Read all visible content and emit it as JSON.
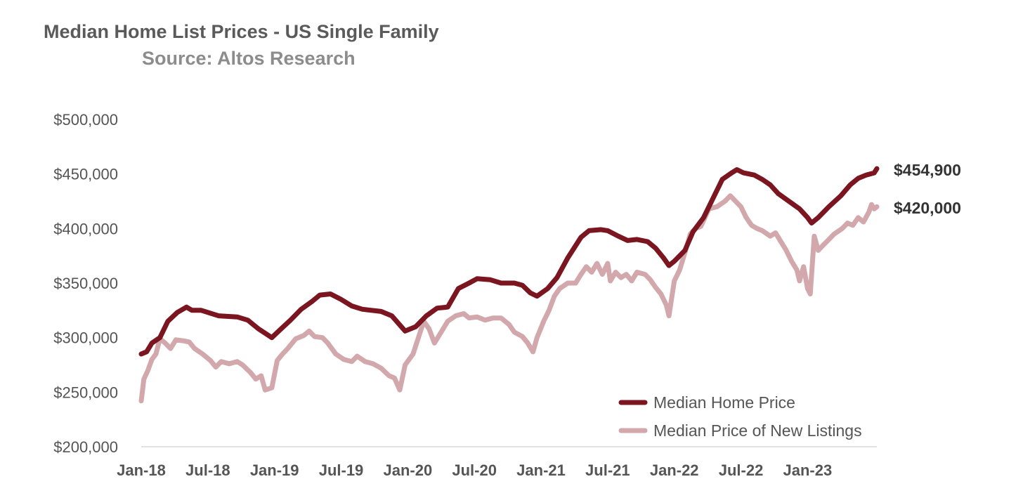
{
  "chart_data": {
    "type": "line",
    "title": "Median Home List Prices - US Single Family",
    "subtitle": "Source: Altos Research",
    "xlabel": "",
    "ylabel": "",
    "ylim": [
      200000,
      500000
    ],
    "y_ticks": [
      500000,
      450000,
      400000,
      350000,
      300000,
      250000,
      200000
    ],
    "y_tick_labels": [
      "$500,000",
      "$450,000",
      "$400,000",
      "$350,000",
      "$300,000",
      "$250,000",
      "$200,000"
    ],
    "x_tick_labels": [
      "Jan-18",
      "Jul-18",
      "Jan-19",
      "Jul-19",
      "Jan-20",
      "Jul-20",
      "Jan-21",
      "Jul-21",
      "Jan-22",
      "Jul-22",
      "Jan-23"
    ],
    "x_ticks": [
      2018.0,
      2018.5,
      2019.0,
      2019.5,
      2020.0,
      2020.5,
      2021.0,
      2021.5,
      2022.0,
      2022.5,
      2023.0
    ],
    "xlim": [
      2018.0,
      2023.52
    ],
    "grid": false,
    "legend_position": "bottom-right",
    "series": [
      {
        "name": "Median Home Price",
        "color": "#7b1520",
        "end_label": "$454,900",
        "points": [
          [
            2018.0,
            285000
          ],
          [
            2018.04,
            287000
          ],
          [
            2018.08,
            295000
          ],
          [
            2018.14,
            300000
          ],
          [
            2018.2,
            315000
          ],
          [
            2018.27,
            323000
          ],
          [
            2018.34,
            328000
          ],
          [
            2018.38,
            325000
          ],
          [
            2018.45,
            325000
          ],
          [
            2018.58,
            320000
          ],
          [
            2018.72,
            319000
          ],
          [
            2018.8,
            316000
          ],
          [
            2018.88,
            308000
          ],
          [
            2018.98,
            300000
          ],
          [
            2019.04,
            307000
          ],
          [
            2019.12,
            316000
          ],
          [
            2019.2,
            326000
          ],
          [
            2019.28,
            333000
          ],
          [
            2019.34,
            339000
          ],
          [
            2019.42,
            340000
          ],
          [
            2019.5,
            335000
          ],
          [
            2019.58,
            329000
          ],
          [
            2019.66,
            326000
          ],
          [
            2019.8,
            324000
          ],
          [
            2019.88,
            320000
          ],
          [
            2019.98,
            306000
          ],
          [
            2020.06,
            310000
          ],
          [
            2020.14,
            320000
          ],
          [
            2020.22,
            327000
          ],
          [
            2020.3,
            328000
          ],
          [
            2020.38,
            345000
          ],
          [
            2020.46,
            350000
          ],
          [
            2020.52,
            354000
          ],
          [
            2020.62,
            353000
          ],
          [
            2020.7,
            350000
          ],
          [
            2020.8,
            350000
          ],
          [
            2020.86,
            348000
          ],
          [
            2020.92,
            341000
          ],
          [
            2020.97,
            338000
          ],
          [
            2021.05,
            345000
          ],
          [
            2021.12,
            355000
          ],
          [
            2021.2,
            373000
          ],
          [
            2021.3,
            392000
          ],
          [
            2021.36,
            398000
          ],
          [
            2021.45,
            399000
          ],
          [
            2021.5,
            398000
          ],
          [
            2021.58,
            393000
          ],
          [
            2021.65,
            389000
          ],
          [
            2021.72,
            390000
          ],
          [
            2021.8,
            388000
          ],
          [
            2021.86,
            382000
          ],
          [
            2021.92,
            373000
          ],
          [
            2021.96,
            366000
          ],
          [
            2022.0,
            370000
          ],
          [
            2022.08,
            380000
          ],
          [
            2022.14,
            397000
          ],
          [
            2022.22,
            410000
          ],
          [
            2022.3,
            430000
          ],
          [
            2022.36,
            445000
          ],
          [
            2022.43,
            451000
          ],
          [
            2022.47,
            454000
          ],
          [
            2022.52,
            451000
          ],
          [
            2022.6,
            449000
          ],
          [
            2022.66,
            445000
          ],
          [
            2022.72,
            440000
          ],
          [
            2022.78,
            432000
          ],
          [
            2022.86,
            425000
          ],
          [
            2022.94,
            418000
          ],
          [
            2023.0,
            410000
          ],
          [
            2023.03,
            405000
          ],
          [
            2023.08,
            410000
          ],
          [
            2023.16,
            420000
          ],
          [
            2023.25,
            430000
          ],
          [
            2023.32,
            440000
          ],
          [
            2023.38,
            446000
          ],
          [
            2023.44,
            449000
          ],
          [
            2023.5,
            451000
          ],
          [
            2023.52,
            454900
          ]
        ]
      },
      {
        "name": "Median Price of New Listings",
        "color": "#d2a8ad",
        "end_label": "$420,000",
        "points": [
          [
            2018.0,
            242000
          ],
          [
            2018.02,
            262000
          ],
          [
            2018.05,
            270000
          ],
          [
            2018.08,
            280000
          ],
          [
            2018.11,
            285000
          ],
          [
            2018.14,
            299000
          ],
          [
            2018.18,
            295000
          ],
          [
            2018.22,
            290000
          ],
          [
            2018.26,
            298000
          ],
          [
            2018.32,
            297000
          ],
          [
            2018.36,
            296000
          ],
          [
            2018.4,
            290000
          ],
          [
            2018.46,
            285000
          ],
          [
            2018.52,
            279000
          ],
          [
            2018.56,
            273000
          ],
          [
            2018.6,
            278000
          ],
          [
            2018.66,
            276000
          ],
          [
            2018.72,
            278000
          ],
          [
            2018.76,
            275000
          ],
          [
            2018.82,
            268000
          ],
          [
            2018.86,
            262000
          ],
          [
            2018.9,
            265000
          ],
          [
            2018.93,
            252000
          ],
          [
            2018.98,
            254000
          ],
          [
            2019.02,
            279000
          ],
          [
            2019.06,
            285000
          ],
          [
            2019.1,
            290000
          ],
          [
            2019.16,
            299000
          ],
          [
            2019.22,
            302000
          ],
          [
            2019.26,
            306000
          ],
          [
            2019.3,
            301000
          ],
          [
            2019.36,
            300000
          ],
          [
            2019.4,
            295000
          ],
          [
            2019.46,
            285000
          ],
          [
            2019.52,
            280000
          ],
          [
            2019.58,
            278000
          ],
          [
            2019.62,
            283000
          ],
          [
            2019.68,
            278000
          ],
          [
            2019.74,
            276000
          ],
          [
            2019.8,
            272000
          ],
          [
            2019.86,
            265000
          ],
          [
            2019.9,
            263000
          ],
          [
            2019.94,
            252000
          ],
          [
            2019.98,
            275000
          ],
          [
            2020.04,
            285000
          ],
          [
            2020.08,
            300000
          ],
          [
            2020.12,
            315000
          ],
          [
            2020.16,
            308000
          ],
          [
            2020.2,
            295000
          ],
          [
            2020.25,
            305000
          ],
          [
            2020.3,
            315000
          ],
          [
            2020.36,
            320000
          ],
          [
            2020.42,
            322000
          ],
          [
            2020.46,
            318000
          ],
          [
            2020.52,
            319000
          ],
          [
            2020.58,
            316000
          ],
          [
            2020.64,
            318000
          ],
          [
            2020.7,
            318000
          ],
          [
            2020.76,
            312000
          ],
          [
            2020.8,
            305000
          ],
          [
            2020.86,
            301000
          ],
          [
            2020.9,
            295000
          ],
          [
            2020.94,
            287000
          ],
          [
            2020.97,
            300000
          ],
          [
            2021.02,
            315000
          ],
          [
            2021.06,
            325000
          ],
          [
            2021.1,
            338000
          ],
          [
            2021.14,
            345000
          ],
          [
            2021.2,
            350000
          ],
          [
            2021.26,
            350000
          ],
          [
            2021.3,
            358000
          ],
          [
            2021.34,
            365000
          ],
          [
            2021.38,
            360000
          ],
          [
            2021.42,
            368000
          ],
          [
            2021.46,
            358000
          ],
          [
            2021.5,
            368000
          ],
          [
            2021.52,
            352000
          ],
          [
            2021.56,
            360000
          ],
          [
            2021.6,
            355000
          ],
          [
            2021.64,
            358000
          ],
          [
            2021.68,
            352000
          ],
          [
            2021.72,
            360000
          ],
          [
            2021.78,
            358000
          ],
          [
            2021.82,
            353000
          ],
          [
            2021.86,
            346000
          ],
          [
            2021.9,
            340000
          ],
          [
            2021.94,
            330000
          ],
          [
            2021.96,
            320000
          ],
          [
            2022.0,
            352000
          ],
          [
            2022.04,
            362000
          ],
          [
            2022.08,
            378000
          ],
          [
            2022.12,
            395000
          ],
          [
            2022.16,
            400000
          ],
          [
            2022.2,
            402000
          ],
          [
            2022.26,
            418000
          ],
          [
            2022.32,
            420000
          ],
          [
            2022.38,
            425000
          ],
          [
            2022.42,
            430000
          ],
          [
            2022.46,
            425000
          ],
          [
            2022.5,
            420000
          ],
          [
            2022.54,
            410000
          ],
          [
            2022.58,
            403000
          ],
          [
            2022.62,
            400000
          ],
          [
            2022.66,
            398000
          ],
          [
            2022.72,
            393000
          ],
          [
            2022.76,
            396000
          ],
          [
            2022.8,
            388000
          ],
          [
            2022.84,
            380000
          ],
          [
            2022.88,
            370000
          ],
          [
            2022.92,
            362000
          ],
          [
            2022.94,
            352000
          ],
          [
            2022.97,
            365000
          ],
          [
            2023.0,
            345000
          ],
          [
            2023.02,
            340000
          ],
          [
            2023.05,
            393000
          ],
          [
            2023.08,
            380000
          ],
          [
            2023.12,
            385000
          ],
          [
            2023.16,
            390000
          ],
          [
            2023.2,
            395000
          ],
          [
            2023.26,
            400000
          ],
          [
            2023.3,
            405000
          ],
          [
            2023.34,
            403000
          ],
          [
            2023.38,
            410000
          ],
          [
            2023.42,
            406000
          ],
          [
            2023.46,
            415000
          ],
          [
            2023.48,
            422000
          ],
          [
            2023.5,
            418000
          ],
          [
            2023.52,
            420000
          ]
        ]
      }
    ]
  }
}
